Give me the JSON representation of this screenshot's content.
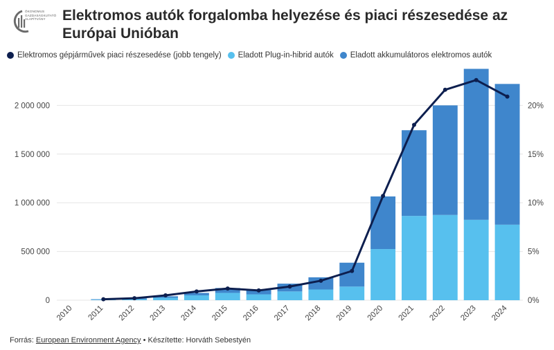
{
  "header": {
    "title": "Elektromos autók forgalomba helyezése és piaci részesedése az Európai Unióban",
    "logo_lines": [
      "ÖKONOMUS",
      "GAZDASÁGKUTATÓ",
      "ALAPÍTVÁNY"
    ]
  },
  "legend": {
    "items": [
      {
        "label": "Elektromos gépjárművek piaci részesedése (jobb tengely)",
        "color": "#0d1f4f"
      },
      {
        "label": "Eladott Plug-in-hibrid autók",
        "color": "#57c0ee"
      },
      {
        "label": "Eladott akkumulátoros elektromos autók",
        "color": "#3f86cc"
      }
    ]
  },
  "chart_data": {
    "type": "bar",
    "stacked": true,
    "categories": [
      "2010",
      "2011",
      "2012",
      "2013",
      "2014",
      "2015",
      "2016",
      "2017",
      "2018",
      "2019",
      "2020",
      "2021",
      "2022",
      "2023",
      "2024"
    ],
    "series": [
      {
        "name": "Eladott Plug-in-hibrid autók",
        "color": "#57c0ee",
        "values": [
          0,
          5000,
          10000,
          25000,
          50000,
          75000,
          60000,
          90000,
          110000,
          140000,
          525000,
          865000,
          875000,
          825000,
          775000
        ]
      },
      {
        "name": "Eladott akkumulátoros elektromos autók",
        "color": "#3f86cc",
        "values": [
          0,
          5000,
          10000,
          15000,
          25000,
          50000,
          45000,
          80000,
          125000,
          245000,
          540000,
          880000,
          1125000,
          1550000,
          1445000
        ]
      },
      {
        "name": "Elektromos gépjárművek piaci részesedése (jobb tengely)",
        "color": "#0d1f4f",
        "axis": "right",
        "values": [
          null,
          0.1,
          0.2,
          0.5,
          0.9,
          1.2,
          1.0,
          1.4,
          2.0,
          3.0,
          10.7,
          18.0,
          21.6,
          22.6,
          20.9
        ]
      }
    ],
    "ylim": [
      0,
      2400000
    ],
    "yticks": [
      0,
      500000,
      1000000,
      1500000,
      2000000
    ],
    "ytick_labels": [
      "0",
      "500 000",
      "1 000 000",
      "1 500 000",
      "2 000 000"
    ],
    "y2lim": [
      0,
      24
    ],
    "y2ticks": [
      0,
      5,
      10,
      15,
      20
    ],
    "y2tick_labels": [
      "0%",
      "5%",
      "10%",
      "15%",
      "20%"
    ],
    "grid": true,
    "legend_position": "top-left"
  },
  "footer": {
    "prefix": "Forrás: ",
    "source_link": "European Environment Agency",
    "suffix": " • Készítette: Horváth Sebestyén"
  }
}
